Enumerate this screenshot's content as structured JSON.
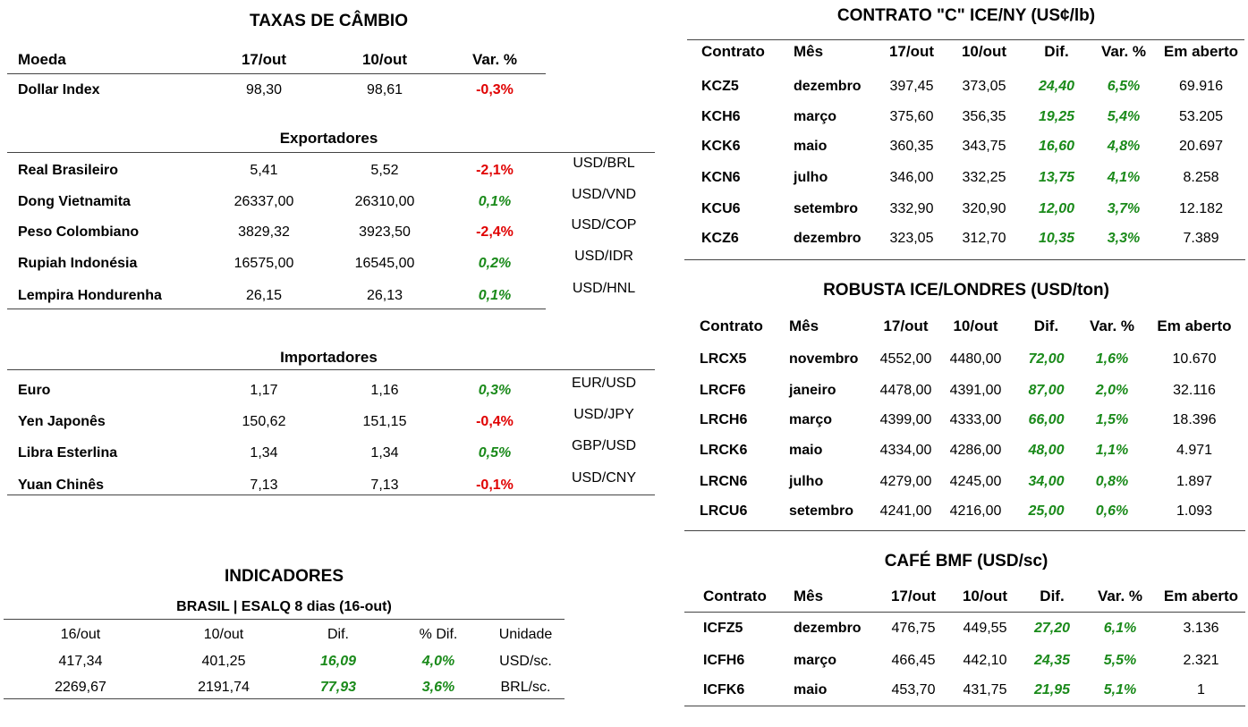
{
  "fx": {
    "title": "TAXAS DE CÂMBIO",
    "headers": {
      "currency": "Moeda",
      "d1": "17/out",
      "d2": "10/out",
      "var": "Var. %"
    },
    "dollar_index": {
      "name": "Dollar Index",
      "v1": "98,30",
      "v2": "98,61",
      "var": "-0,3%"
    },
    "exporters_label": "Exportadores",
    "exporters": [
      {
        "name": "Real Brasileiro",
        "v1": "5,41",
        "v2": "5,52",
        "var": "-2,1%",
        "pair": "USD/BRL",
        "neg": true
      },
      {
        "name": "Dong Vietnamita",
        "v1": "26337,00",
        "v2": "26310,00",
        "var": "0,1%",
        "pair": "USD/VND",
        "neg": false
      },
      {
        "name": "Peso Colombiano",
        "v1": "3829,32",
        "v2": "3923,50",
        "var": "-2,4%",
        "pair": "USD/COP",
        "neg": true
      },
      {
        "name": "Rupiah Indonésia",
        "v1": "16575,00",
        "v2": "16545,00",
        "var": "0,2%",
        "pair": "USD/IDR",
        "neg": false
      },
      {
        "name": "Lempira Hondurenha",
        "v1": "26,15",
        "v2": "26,13",
        "var": "0,1%",
        "pair": "USD/HNL",
        "neg": false
      }
    ],
    "importers_label": "Importadores",
    "importers": [
      {
        "name": "Euro",
        "v1": "1,17",
        "v2": "1,16",
        "var": "0,3%",
        "pair": "EUR/USD",
        "neg": false
      },
      {
        "name": "Yen Japonês",
        "v1": "150,62",
        "v2": "151,15",
        "var": "-0,4%",
        "pair": "USD/JPY",
        "neg": true
      },
      {
        "name": "Libra Esterlina",
        "v1": "1,34",
        "v2": "1,34",
        "var": "0,5%",
        "pair": "GBP/USD",
        "neg": false
      },
      {
        "name": "Yuan Chinês",
        "v1": "7,13",
        "v2": "7,13",
        "var": "-0,1%",
        "pair": "USD/CNY",
        "neg": true
      }
    ]
  },
  "indicators": {
    "title": "INDICADORES",
    "subtitle": "BRASIL | ESALQ 8 dias (16-out)",
    "headers": [
      "16/out",
      "10/out",
      "Dif.",
      "% Dif.",
      "Unidade"
    ],
    "rows": [
      [
        "417,34",
        "401,25",
        "16,09",
        "4,0%",
        "USD/sc."
      ],
      [
        "2269,67",
        "2191,74",
        "77,93",
        "3,6%",
        "BRL/sc."
      ]
    ]
  },
  "ice_ny": {
    "title": "CONTRATO \"C\" ICE/NY (US¢/lb)",
    "headers": [
      "Contrato",
      "Mês",
      "17/out",
      "10/out",
      "Dif.",
      "Var. %",
      "Em aberto"
    ],
    "rows": [
      [
        "KCZ5",
        "dezembro",
        "397,45",
        "373,05",
        "24,40",
        "6,5%",
        "69.916"
      ],
      [
        "KCH6",
        "março",
        "375,60",
        "356,35",
        "19,25",
        "5,4%",
        "53.205"
      ],
      [
        "KCK6",
        "maio",
        "360,35",
        "343,75",
        "16,60",
        "4,8%",
        "20.697"
      ],
      [
        "KCN6",
        "julho",
        "346,00",
        "332,25",
        "13,75",
        "4,1%",
        "8.258"
      ],
      [
        "KCU6",
        "setembro",
        "332,90",
        "320,90",
        "12,00",
        "3,7%",
        "12.182"
      ],
      [
        "KCZ6",
        "dezembro",
        "323,05",
        "312,70",
        "10,35",
        "3,3%",
        "7.389"
      ]
    ]
  },
  "robusta": {
    "title": "ROBUSTA ICE/LONDRES (USD/ton)",
    "headers": [
      "Contrato",
      "Mês",
      "17/out",
      "10/out",
      "Dif.",
      "Var. %",
      "Em aberto"
    ],
    "rows": [
      [
        "LRCX5",
        "novembro",
        "4552,00",
        "4480,00",
        "72,00",
        "1,6%",
        "10.670"
      ],
      [
        "LRCF6",
        "janeiro",
        "4478,00",
        "4391,00",
        "87,00",
        "2,0%",
        "32.116"
      ],
      [
        "LRCH6",
        "março",
        "4399,00",
        "4333,00",
        "66,00",
        "1,5%",
        "18.396"
      ],
      [
        "LRCK6",
        "maio",
        "4334,00",
        "4286,00",
        "48,00",
        "1,1%",
        "4.971"
      ],
      [
        "LRCN6",
        "julho",
        "4279,00",
        "4245,00",
        "34,00",
        "0,8%",
        "1.897"
      ],
      [
        "LRCU6",
        "setembro",
        "4241,00",
        "4216,00",
        "25,00",
        "0,6%",
        "1.093"
      ]
    ]
  },
  "bmf": {
    "title": "CAFÉ BMF (USD/sc)",
    "headers": [
      "Contrato",
      "Mês",
      "17/out",
      "10/out",
      "Dif.",
      "Var. %",
      "Em aberto"
    ],
    "rows": [
      [
        "ICFZ5",
        "dezembro",
        "476,75",
        "449,55",
        "27,20",
        "6,1%",
        "3.136"
      ],
      [
        "ICFH6",
        "março",
        "466,45",
        "442,10",
        "24,35",
        "5,5%",
        "2.321"
      ],
      [
        "ICFK6",
        "maio",
        "453,70",
        "431,75",
        "21,95",
        "5,1%",
        "1"
      ]
    ]
  },
  "colors": {
    "negative": "#e00000",
    "positive": "#1a8a1a"
  }
}
